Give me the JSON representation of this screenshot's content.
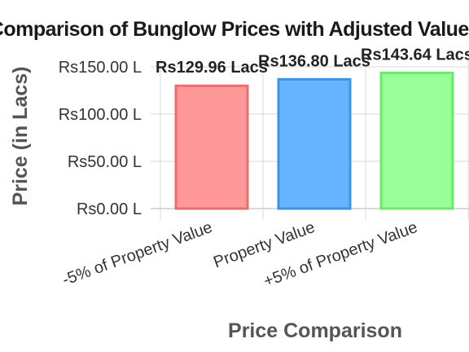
{
  "chart_data": {
    "type": "bar",
    "title": "Comparison of Bunglow Prices with Adjusted Values",
    "xlabel": "Price Comparison",
    "ylabel": "Price (in Lacs)",
    "categories": [
      "-5% of Property Value",
      "Property Value",
      "+5% of Property Value"
    ],
    "values": [
      129.96,
      136.8,
      143.64
    ],
    "data_labels": [
      "Rs129.96 Lacs",
      "Rs136.80 Lacs",
      "Rs143.64 Lacs"
    ],
    "ylim": [
      0,
      150
    ],
    "yticks": [
      0,
      50,
      100,
      150
    ],
    "ytick_labels": [
      "Rs0.00 L",
      "Rs50.00 L",
      "Rs100.00 L",
      "Rs150.00 L"
    ],
    "grid": true,
    "bar_colors": [
      "#ff9999",
      "#66b3ff",
      "#99ff99"
    ],
    "bar_edge_colors": [
      "#ee6b6e",
      "#3d94e6",
      "#66ee66"
    ]
  }
}
